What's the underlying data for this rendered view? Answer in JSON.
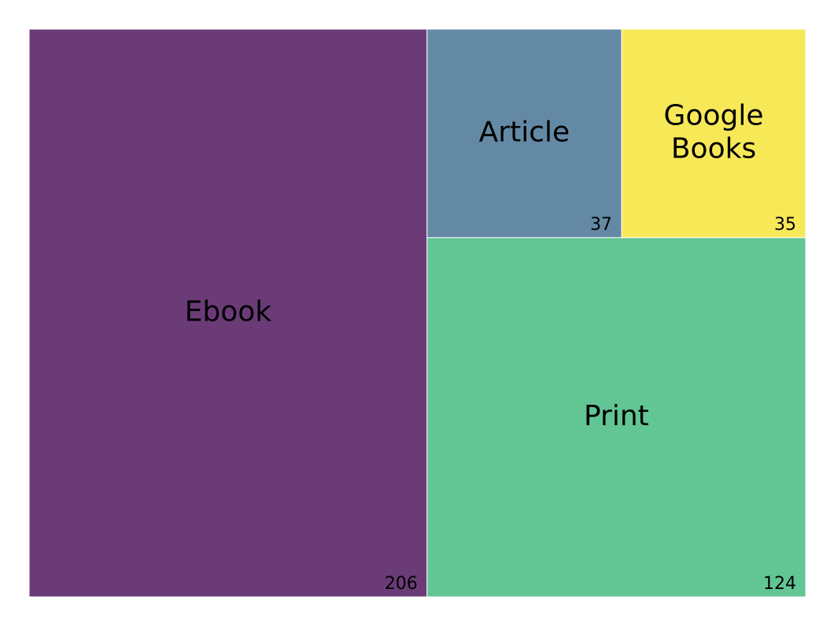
{
  "chart_data": {
    "type": "treemap",
    "title": "",
    "items": [
      {
        "label": "Ebook",
        "value": 206,
        "color": "#6b3b78"
      },
      {
        "label": "Article",
        "value": 37,
        "color": "#6389a5"
      },
      {
        "label": "Google Books",
        "value": 35,
        "color": "#f7e858"
      },
      {
        "label": "Print",
        "value": 124,
        "color": "#62c594"
      }
    ]
  }
}
